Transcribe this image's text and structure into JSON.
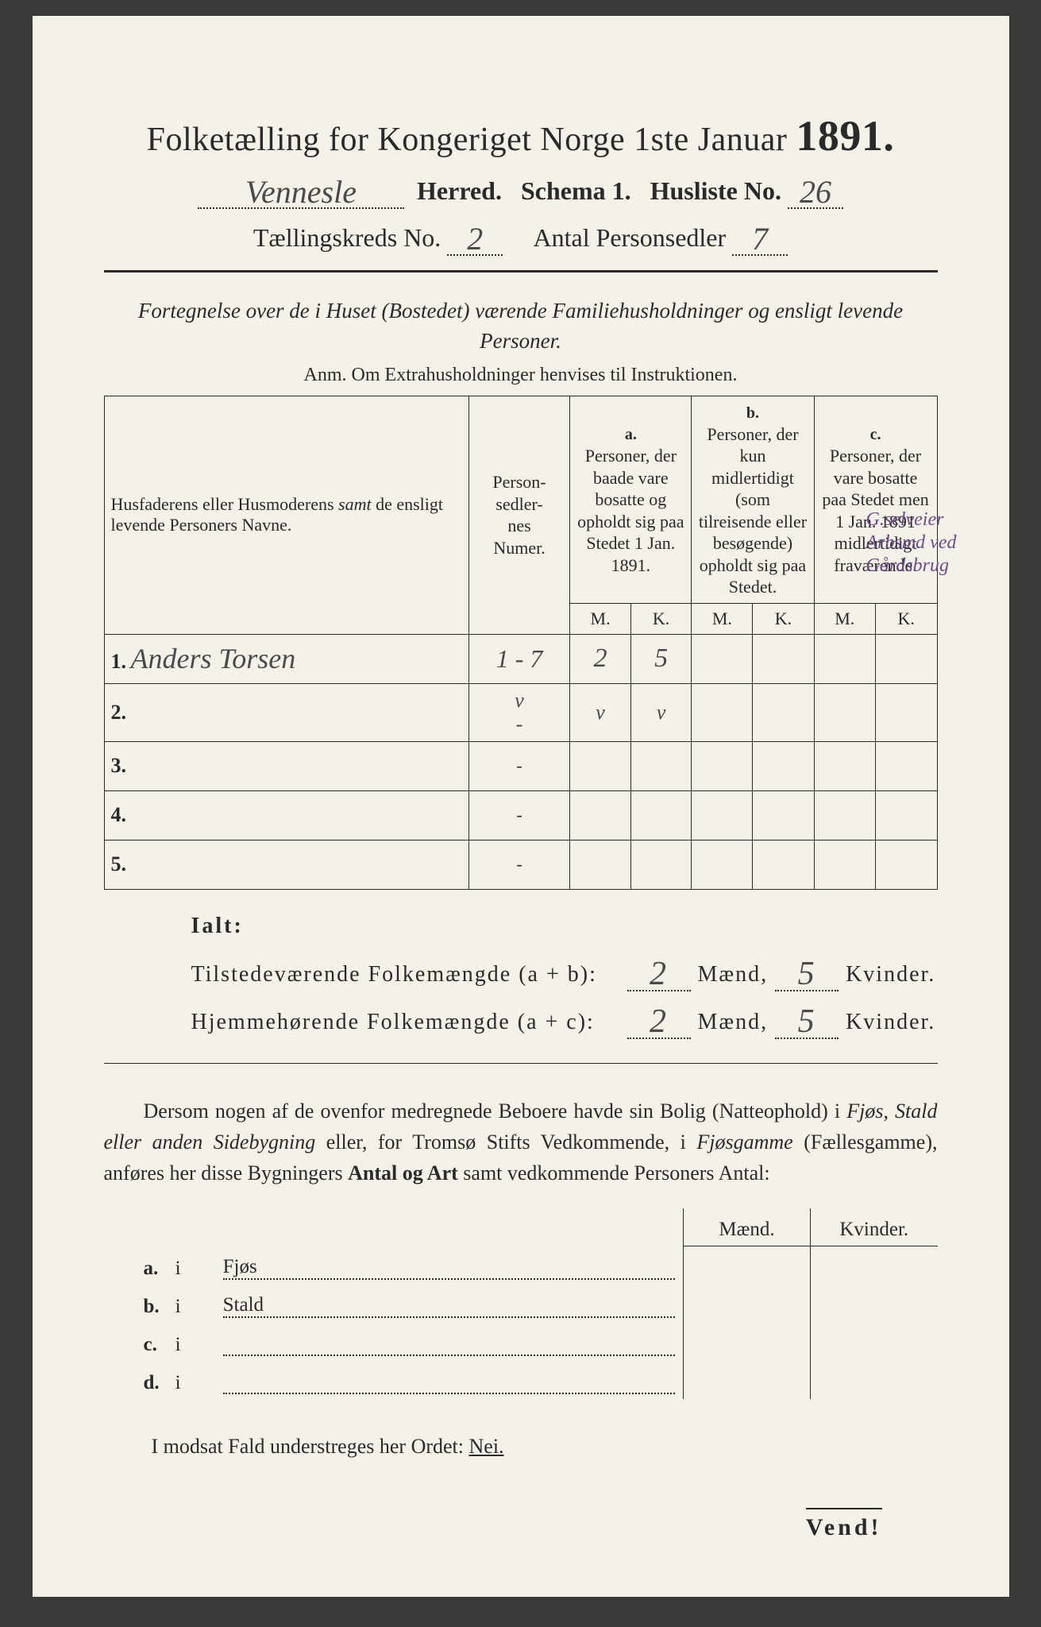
{
  "colors": {
    "paper_bg": "#f3f1e8",
    "ink": "#2a2a2a",
    "handwriting": "#4a4a4a",
    "purple_ink": "#6f4a8a",
    "outer_bg": "#3a3a3a"
  },
  "header": {
    "title_prefix": "Folketælling for Kongeriget Norge 1ste Januar",
    "year": "1891.",
    "herred_value": "Vennesle",
    "herred_label": "Herred.",
    "schema_label": "Schema 1.",
    "husliste_label": "Husliste No.",
    "husliste_value": "26",
    "kreds_label": "Tællingskreds No.",
    "kreds_value": "2",
    "antal_label": "Antal Personsedler",
    "antal_value": "7"
  },
  "subtitle": {
    "line": "Fortegnelse over de i Huset (Bostedet) værende Familiehusholdninger og ensligt levende Personer.",
    "anm": "Anm.  Om Extrahusholdninger henvises til Instruktionen."
  },
  "table": {
    "col_names": "Husfaderens eller Husmoderens samt de ensligt levende Personers Navne.",
    "col_num": "Person-\nsedler-\nnes\nNumer.",
    "col_a_letter": "a.",
    "col_a": "Personer, der baade vare bosatte og opholdt sig paa Stedet 1 Jan. 1891.",
    "col_b_letter": "b.",
    "col_b": "Personer, der kun midlertidigt (som tilreisende eller besøgende) opholdt sig paa Stedet.",
    "col_c_letter": "c.",
    "col_c": "Personer, der vare bosatte paa Stedet men 1 Jan. 1891 midlertidigt fraværende.",
    "M": "M.",
    "K": "K.",
    "rows": [
      {
        "n": "1.",
        "name": "Anders Torsen",
        "num": "1 - 7",
        "aM": "2",
        "aK": "5",
        "bM": "",
        "bK": "",
        "cM": "",
        "cK": ""
      },
      {
        "n": "2.",
        "name": "",
        "num": "v\n-",
        "aM": "v",
        "aK": "v",
        "bM": "",
        "bK": "",
        "cM": "",
        "cK": ""
      },
      {
        "n": "3.",
        "name": "",
        "num": "-",
        "aM": "",
        "aK": "",
        "bM": "",
        "bK": "",
        "cM": "",
        "cK": ""
      },
      {
        "n": "4.",
        "name": "",
        "num": "-",
        "aM": "",
        "aK": "",
        "bM": "",
        "bK": "",
        "cM": "",
        "cK": ""
      },
      {
        "n": "5.",
        "name": "",
        "num": "-",
        "aM": "",
        "aK": "",
        "bM": "",
        "bK": "",
        "cM": "",
        "cK": ""
      }
    ],
    "margin_note": "G.selveier Arbsmd ved Gårdsbrug"
  },
  "totals": {
    "ialt": "Ialt:",
    "line1_label": "Tilstedeværende Folkemængde (a + b):",
    "line1_m": "2",
    "maend": "Mænd,",
    "line1_k": "5",
    "kvinder": "Kvinder.",
    "line2_label": "Hjemmehørende Folkemængde (a + c):",
    "line2_m": "2",
    "line2_k": "5"
  },
  "paragraph": {
    "text1": "Dersom nogen af de ovenfor medregnede Beboere havde sin Bolig (Natteophold) i ",
    "ital1": "Fjøs, Stald eller anden Sidebygning",
    "text2": " eller, for Tromsø Stifts Vedkommende, i ",
    "ital2": "Fjøsgamme",
    "text3": " (Fællesgamme), anføres her disse Bygningers ",
    "bold1": "Antal og Art",
    "text4": " samt vedkommende Personers Antal:"
  },
  "lower": {
    "head_m": "Mænd.",
    "head_k": "Kvinder.",
    "rows": [
      {
        "letter": "a.",
        "i": "i",
        "label": "Fjøs"
      },
      {
        "letter": "b.",
        "i": "i",
        "label": "Stald"
      },
      {
        "letter": "c.",
        "i": "i",
        "label": ""
      },
      {
        "letter": "d.",
        "i": "i",
        "label": ""
      }
    ]
  },
  "footer": {
    "line": "I modsat Fald understreges her Ordet: ",
    "nei": "Nei.",
    "vend": "Vend!"
  }
}
